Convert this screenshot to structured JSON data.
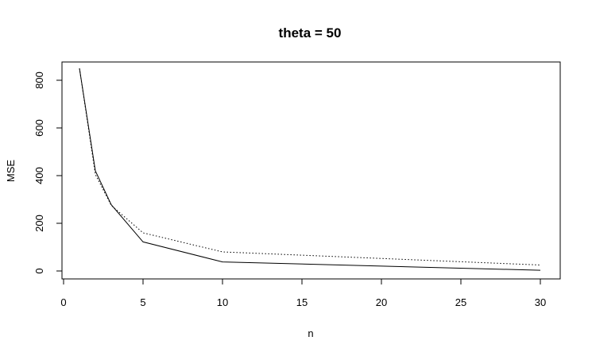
{
  "chart_data": {
    "type": "line",
    "title": "theta = 50",
    "xlabel": "n",
    "ylabel": "MSE",
    "xlim": [
      0,
      30
    ],
    "ylim": [
      0,
      850
    ],
    "x_ticks": [
      0,
      5,
      10,
      15,
      20,
      25,
      30
    ],
    "y_ticks": [
      0,
      200,
      400,
      600,
      800
    ],
    "x_tick_labels": [
      "0",
      "5",
      "10",
      "15",
      "20",
      "25",
      "30"
    ],
    "y_tick_labels": [
      "0",
      "200",
      "400",
      "600",
      "800"
    ],
    "grid": false,
    "legend": "none",
    "series": [
      {
        "style": "solid",
        "color": "#000000",
        "x": [
          1,
          2,
          3,
          5,
          10,
          30
        ],
        "y": [
          850,
          420,
          278,
          122,
          38,
          3
        ]
      },
      {
        "style": "dotted",
        "color": "#000000",
        "x": [
          1,
          2,
          3,
          5,
          10,
          30
        ],
        "y": [
          850,
          405,
          275,
          160,
          80,
          25
        ]
      }
    ]
  }
}
